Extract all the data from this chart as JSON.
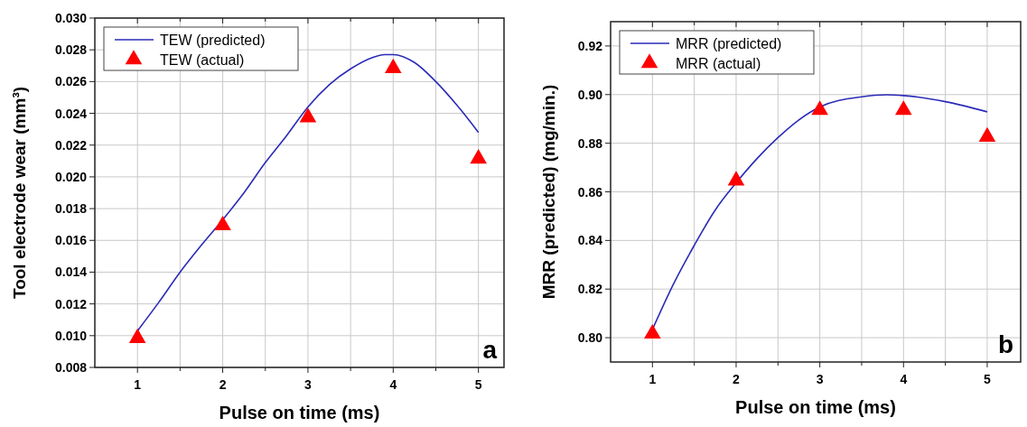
{
  "chart_data": [
    {
      "type": "line",
      "xlabel": "Pulse on time (ms)",
      "ylabel": "Tool electrode wear (mm³)",
      "xlim": [
        0.5,
        5.3
      ],
      "ylim": [
        0.008,
        0.03
      ],
      "xticks": [
        1,
        {
          "value": 1.5,
          "label": null
        },
        2,
        {
          "value": 2.5,
          "label": null
        },
        3,
        {
          "value": 3.5,
          "label": null
        },
        4,
        {
          "value": 4.5,
          "label": null
        },
        5
      ],
      "yticks": [
        {
          "value": 0.008,
          "label": "0.008"
        },
        {
          "value": 0.01,
          "label": "0.010"
        },
        {
          "value": 0.012,
          "label": "0.012"
        },
        {
          "value": 0.014,
          "label": "0.014"
        },
        {
          "value": 0.016,
          "label": "0.016"
        },
        {
          "value": 0.018,
          "label": "0.018"
        },
        {
          "value": 0.02,
          "label": "0.020"
        },
        {
          "value": 0.022,
          "label": "0.022"
        },
        {
          "value": 0.024,
          "label": "0.024"
        },
        {
          "value": 0.026,
          "label": "0.026"
        },
        {
          "value": 0.028,
          "label": "0.028"
        },
        {
          "value": 0.03,
          "label": "0.030"
        }
      ],
      "grid": true,
      "legend": "top left",
      "annotations": [
        "a"
      ],
      "series": [
        {
          "name": "TEW (predicted)",
          "color": "#2b2bb8",
          "marker": "none",
          "x": [
            1,
            1.25,
            1.5,
            1.75,
            2,
            2.25,
            2.5,
            2.75,
            3,
            3.25,
            3.5,
            3.75,
            3.9,
            4,
            4.25,
            4.5,
            4.75,
            5
          ],
          "values": [
            0.0103,
            0.0121,
            0.014,
            0.0157,
            0.0173,
            0.019,
            0.0209,
            0.0226,
            0.0244,
            0.0258,
            0.0268,
            0.0275,
            0.0277,
            0.0277,
            0.0272,
            0.026,
            0.0245,
            0.0228
          ]
        },
        {
          "name": "TEW (actual)",
          "type": "scatter",
          "color": "#ff0000",
          "marker": "triangle",
          "x": [
            1,
            2,
            3,
            4,
            5
          ],
          "values": [
            0.0099,
            0.017,
            0.0238,
            0.0269,
            0.0212
          ]
        }
      ]
    },
    {
      "type": "line",
      "xlabel": "Pulse on time (ms)",
      "ylabel": "MRR (predicted) (mg/min.)",
      "xlim": [
        0.5,
        5.4
      ],
      "ylim": [
        0.79,
        0.93
      ],
      "xticks": [
        1,
        {
          "value": 1.5,
          "label": null
        },
        2,
        {
          "value": 2.5,
          "label": null
        },
        3,
        {
          "value": 3.5,
          "label": null
        },
        4,
        {
          "value": 4.5,
          "label": null
        },
        5
      ],
      "yticks": [
        {
          "value": 0.8,
          "label": "0.80"
        },
        0.82,
        0.84,
        0.86,
        0.88,
        {
          "value": 0.9,
          "label": "0.90"
        },
        0.92
      ],
      "grid": true,
      "legend": "top left",
      "annotations": [
        "b"
      ],
      "series": [
        {
          "name": "MRR (predicted)",
          "color": "#2b2bb8",
          "marker": "none",
          "x": [
            1,
            1.25,
            1.5,
            1.75,
            2,
            2.25,
            2.5,
            2.75,
            3,
            3.5,
            3.8,
            4,
            4.5,
            5
          ],
          "values": [
            0.8034,
            0.822,
            0.838,
            0.8525,
            0.8637,
            0.8737,
            0.8823,
            0.8896,
            0.8949,
            0.8991,
            0.8999,
            0.8996,
            0.8971,
            0.8929
          ]
        },
        {
          "name": "MRR (actual)",
          "type": "scatter",
          "color": "#ff0000",
          "marker": "triangle",
          "x": [
            1,
            2,
            3,
            4,
            5
          ],
          "values": [
            0.802,
            0.865,
            0.894,
            0.894,
            0.883
          ]
        }
      ]
    }
  ]
}
